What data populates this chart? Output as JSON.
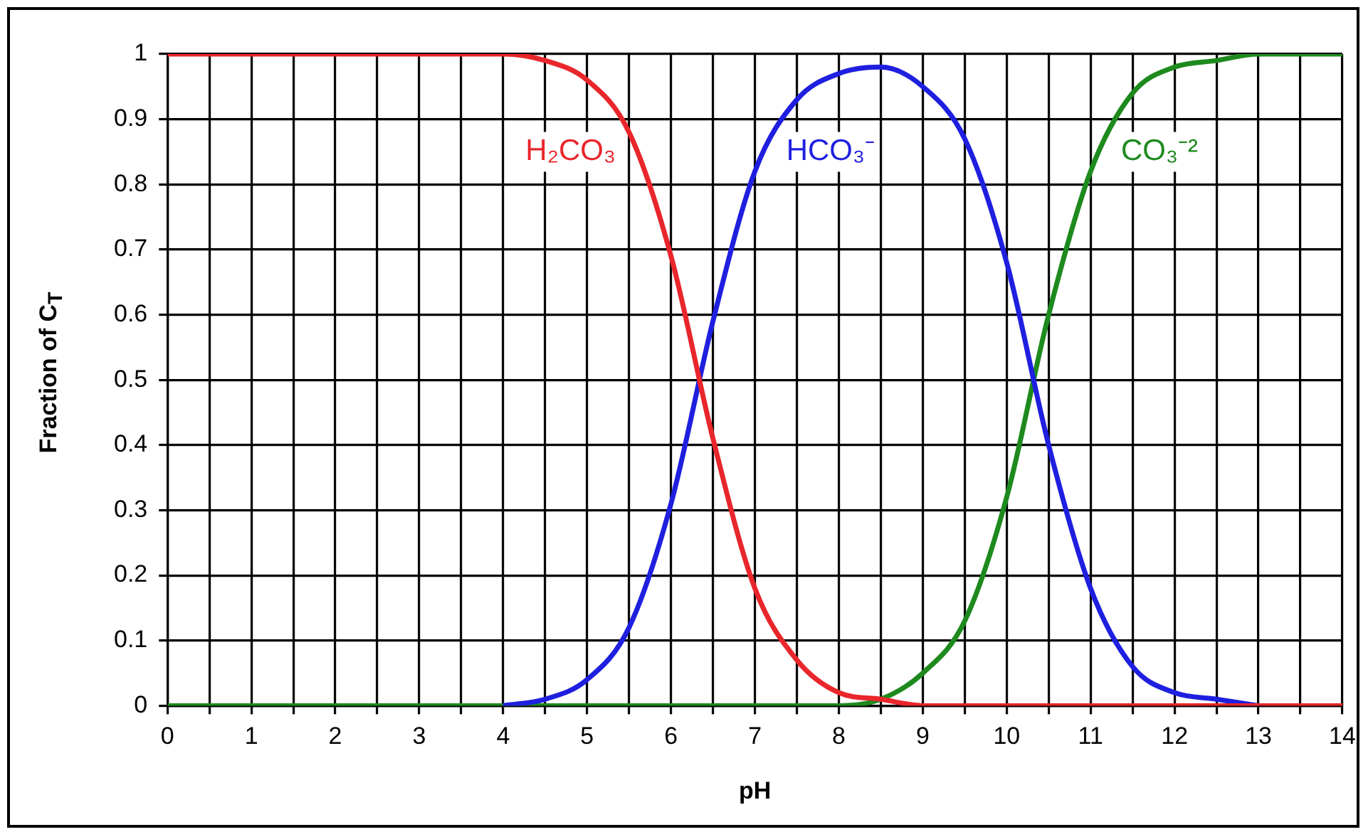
{
  "chart_data": {
    "type": "line",
    "xlabel": "pH",
    "ylabel": "Fraction of C$_{T}$",
    "x": [
      0,
      0.5,
      1,
      1.5,
      2,
      2.5,
      3,
      3.5,
      4,
      4.5,
      5,
      5.5,
      6,
      6.5,
      7,
      7.5,
      8,
      8.5,
      9,
      9.5,
      10,
      10.5,
      11,
      11.5,
      12,
      12.5,
      13,
      13.5,
      14
    ],
    "series": [
      {
        "name": "H₂CO₃",
        "color": "#e8262b",
        "values": [
          1,
          1,
          1,
          1,
          1,
          1,
          1,
          1,
          1,
          0.99,
          0.96,
          0.88,
          0.69,
          0.41,
          0.18,
          0.07,
          0.02,
          0.01,
          0,
          0,
          0,
          0,
          0,
          0,
          0,
          0,
          0,
          0,
          0
        ]
      },
      {
        "name": "HCO₃⁻",
        "color": "#1f1fe0",
        "values": [
          null,
          null,
          null,
          null,
          null,
          null,
          null,
          null,
          0,
          0.01,
          0.04,
          0.12,
          0.31,
          0.59,
          0.82,
          0.93,
          0.97,
          0.98,
          0.95,
          0.87,
          0.68,
          0.4,
          0.18,
          0.06,
          0.02,
          0.01,
          0,
          null,
          null
        ]
      },
      {
        "name": "CO₃⁻²",
        "color": "#1e8a1e",
        "values": [
          0,
          0,
          0,
          0,
          0,
          0,
          0,
          0,
          0,
          0,
          0,
          0,
          0,
          0,
          0,
          0,
          0,
          0.01,
          0.05,
          0.13,
          0.32,
          0.6,
          0.82,
          0.94,
          0.98,
          0.99,
          1,
          1,
          1
        ]
      }
    ],
    "xlim": [
      0,
      14
    ],
    "xticks": [
      0,
      {
        "value": 0.5,
        "label": null
      },
      1,
      {
        "value": 1.5,
        "label": null
      },
      2,
      {
        "value": 2.5,
        "label": null
      },
      3,
      {
        "value": 3.5,
        "label": null
      },
      4,
      {
        "value": 4.5,
        "label": null
      },
      5,
      {
        "value": 5.5,
        "label": null
      },
      6,
      {
        "value": 6.5,
        "label": null
      },
      7,
      {
        "value": 7.5,
        "label": null
      },
      8,
      {
        "value": 8.5,
        "label": null
      },
      9,
      {
        "value": 9.5,
        "label": null
      },
      10,
      {
        "value": 10.5,
        "label": null
      },
      11,
      {
        "value": 11.5,
        "label": null
      },
      12,
      {
        "value": 12.5,
        "label": null
      },
      13,
      {
        "value": 13.5,
        "label": null
      },
      14
    ],
    "ylim": [
      0,
      1
    ],
    "yticks": [
      0,
      0.1,
      0.2,
      0.3,
      0.4,
      0.5,
      0.6,
      0.7,
      0.8,
      0.9,
      1
    ],
    "grid": true,
    "legend": false,
    "marker": "none",
    "line_style": "solid"
  }
}
